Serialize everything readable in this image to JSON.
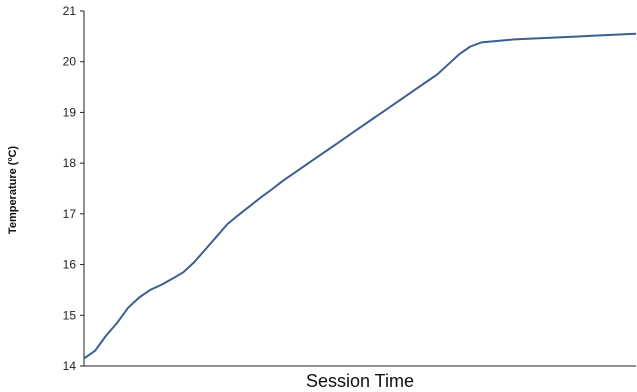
{
  "chart_data": {
    "type": "line",
    "title": "",
    "xlabel": "Session Time",
    "ylabel": "Temperature (ºC)",
    "ylim": [
      14,
      21
    ],
    "yticks": [
      14,
      15,
      16,
      17,
      18,
      19,
      20,
      21
    ],
    "x_tick_labels": "none",
    "grid": false,
    "legend": "none",
    "series": [
      {
        "color": "#3c5f92",
        "x": [
          0,
          2,
          4,
          6,
          8,
          10,
          12,
          14,
          16,
          18,
          20,
          22,
          24,
          26,
          28,
          30,
          32,
          34,
          36,
          38,
          40,
          42,
          44,
          46,
          48,
          50,
          52,
          54,
          56,
          58,
          60,
          62,
          64,
          66,
          68,
          70,
          72,
          74,
          76,
          78,
          80,
          82,
          84,
          86,
          88,
          90,
          92,
          94,
          96,
          98,
          100
        ],
        "values": [
          14.15,
          14.3,
          14.6,
          14.85,
          15.15,
          15.35,
          15.5,
          15.6,
          15.72,
          15.85,
          16.05,
          16.3,
          16.55,
          16.8,
          16.98,
          17.15,
          17.32,
          17.48,
          17.65,
          17.8,
          17.95,
          18.1,
          18.25,
          18.4,
          18.55,
          18.7,
          18.85,
          19.0,
          19.15,
          19.3,
          19.45,
          19.6,
          19.75,
          19.95,
          20.15,
          20.3,
          20.38,
          20.4,
          20.42,
          20.44,
          20.45,
          20.46,
          20.47,
          20.48,
          20.49,
          20.5,
          20.51,
          20.52,
          20.53,
          20.54,
          20.55
        ]
      }
    ]
  }
}
